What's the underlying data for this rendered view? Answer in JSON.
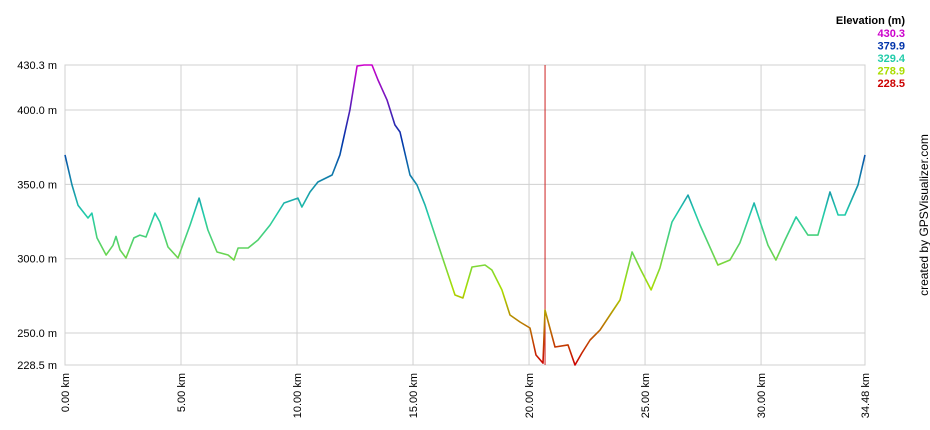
{
  "chart_data": {
    "type": "line",
    "x": [
      0,
      0.3,
      0.56,
      0.99,
      1.16,
      1.38,
      1.77,
      2.07,
      2.2,
      2.37,
      2.63,
      2.97,
      3.23,
      3.49,
      3.88,
      4.09,
      4.44,
      4.87,
      5.39,
      5.78,
      6.16,
      6.55,
      7.03,
      7.28,
      7.46,
      7.89,
      8.32,
      8.84,
      9.44,
      10.04,
      10.21,
      10.56,
      10.9,
      11.51,
      11.85,
      12.28,
      12.59,
      12.89,
      13.23,
      13.49,
      13.88,
      14.22,
      14.44,
      14.87,
      15.17,
      15.52,
      16.16,
      16.81,
      17.15,
      17.54,
      18.1,
      18.4,
      18.83,
      19.18,
      19.61,
      20.04,
      20.3,
      20.6,
      20.69,
      21.12,
      21.68,
      21.98,
      22.28,
      22.63,
      23.06,
      23.49,
      23.92,
      24.44,
      24.78,
      25.26,
      25.64,
      26.16,
      26.85,
      27.37,
      28.14,
      28.66,
      29.09,
      29.7,
      30.3,
      30.64,
      31.03,
      31.51,
      32.02,
      32.45,
      32.97,
      33.32,
      33.62,
      34.18,
      34.48
    ],
    "series": [
      {
        "values": [
          369.8,
          349.6,
          336,
          327.4,
          330.7,
          314,
          302.5,
          309,
          315,
          305.9,
          300.5,
          314,
          315.9,
          314.6,
          330.7,
          324.7,
          307.9,
          300.5,
          322.7,
          340.8,
          319.3,
          304.5,
          302.5,
          299.1,
          307.2,
          307.2,
          312.6,
          322.7,
          337.5,
          340.8,
          334.8,
          344.9,
          351.6,
          356.3,
          369.8,
          400,
          429.6,
          430.3,
          430.3,
          420.2,
          406.8,
          390,
          385.2,
          356.3,
          349.6,
          336,
          305.9,
          275.6,
          273.6,
          294.4,
          295.8,
          292.4,
          279,
          262.1,
          257.4,
          253.4,
          235.2,
          229.8,
          265.5,
          240.6,
          242,
          228.5,
          236.6,
          245.3,
          252,
          262.1,
          272.2,
          304.5,
          293.7,
          279,
          293.7,
          324.7,
          342.8,
          322.7,
          295.8,
          299.1,
          310.6,
          337.5,
          309,
          299.1,
          312.6,
          328.1,
          315.9,
          315.9,
          344.9,
          329.4,
          329.4,
          349.6,
          369.8
        ]
      }
    ],
    "xlim": [
      0,
      34.48
    ],
    "ylim": [
      228.5,
      430.3
    ],
    "xticks": [
      {
        "value": 0,
        "label": "0.00 km"
      },
      {
        "value": 5,
        "label": "5.00 km"
      },
      {
        "value": 10,
        "label": "10.00 km"
      },
      {
        "value": 15,
        "label": "15.00 km"
      },
      {
        "value": 20,
        "label": "20.00 km"
      },
      {
        "value": 25,
        "label": "25.00 km"
      },
      {
        "value": 30,
        "label": "30.00 km"
      },
      {
        "value": 34.48,
        "label": "34.48 km"
      }
    ],
    "yticks": [
      {
        "value": 228.5,
        "label": "228.5 m"
      },
      {
        "value": 250,
        "label": "250.0 m"
      },
      {
        "value": 300,
        "label": "300.0 m"
      },
      {
        "value": 350,
        "label": "350.0 m"
      },
      {
        "value": 400,
        "label": "400.0 m"
      },
      {
        "value": 430.3,
        "label": "430.3 m"
      }
    ],
    "grid": true,
    "color_scale": {
      "title": "Elevation (m)",
      "stops": [
        {
          "value": 430.3,
          "color": "#cc00cc"
        },
        {
          "value": 379.9,
          "color": "#0033aa"
        },
        {
          "value": 329.4,
          "color": "#22ccaa"
        },
        {
          "value": 278.9,
          "color": "#aadd00"
        },
        {
          "value": 228.5,
          "color": "#cc0000"
        }
      ]
    },
    "vline": {
      "x": 20.69,
      "color": "#cc2222"
    },
    "credit": "created by GPSVisualizer.com"
  }
}
